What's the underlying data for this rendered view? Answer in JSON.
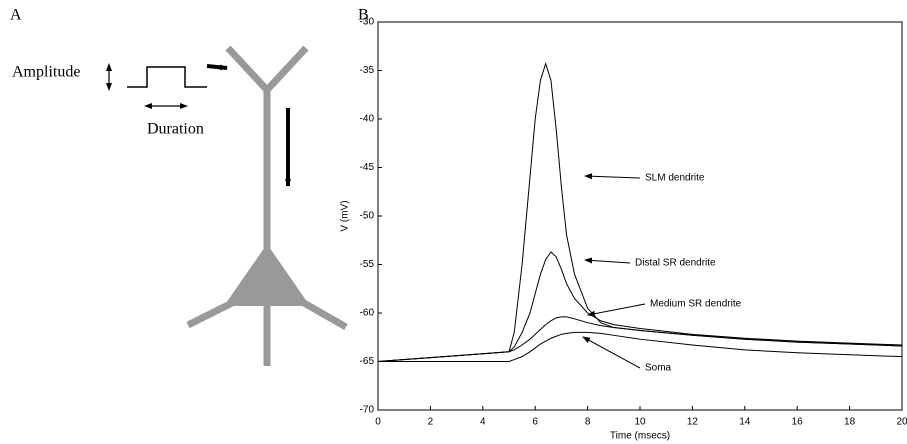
{
  "panel_labels": [
    "A",
    "B"
  ],
  "diagram": {
    "amplitude": "Amplitude",
    "duration": "Duration"
  },
  "chart_data": {
    "type": "line",
    "x_label": "Time (msecs)",
    "y_label": "V (mV)",
    "x": [
      0,
      2,
      4,
      5,
      5.2,
      5.5,
      5.8,
      6,
      6.2,
      6.4,
      6.6,
      6.8,
      7,
      7.2,
      7.5,
      8,
      8.5,
      9,
      10,
      12,
      14,
      16,
      18,
      20
    ],
    "series": [
      {
        "name": "SLM dendrite",
        "color": "#000000",
        "values": [
          -65,
          -64.6,
          -64.2,
          -64,
          -62,
          -55,
          -46,
          -40,
          -36,
          -34.3,
          -36,
          -41,
          -47,
          -52,
          -56,
          -59.5,
          -61,
          -61.5,
          -61.8,
          -62.3,
          -62.7,
          -63,
          -63.2,
          -63.4
        ]
      },
      {
        "name": "Distal SR dendrite",
        "color": "#000000",
        "values": [
          -65,
          -64.6,
          -64.2,
          -64,
          -63.5,
          -62,
          -60,
          -58,
          -56,
          -54.5,
          -53.7,
          -54.2,
          -55.5,
          -57,
          -58.5,
          -60,
          -60.8,
          -61.2,
          -61.6,
          -62.2,
          -62.6,
          -62.9,
          -63.1,
          -63.3
        ]
      },
      {
        "name": "Medium SR dendrite",
        "color": "#000000",
        "values": [
          -65,
          -64.6,
          -64.2,
          -64,
          -63.8,
          -63.3,
          -62.7,
          -62.2,
          -61.7,
          -61.2,
          -60.8,
          -60.5,
          -60.4,
          -60.4,
          -60.6,
          -61,
          -61.3,
          -61.5,
          -61.8,
          -62.3,
          -62.7,
          -63,
          -63.2,
          -63.4
        ]
      },
      {
        "name": "Soma",
        "color": "#000000",
        "values": [
          -65,
          -65,
          -65,
          -65,
          -64.8,
          -64.5,
          -64,
          -63.6,
          -63.2,
          -62.9,
          -62.6,
          -62.4,
          -62.2,
          -62.1,
          -62,
          -62,
          -62.1,
          -62.3,
          -62.7,
          -63.3,
          -63.8,
          -64.1,
          -64.3,
          -64.5
        ]
      }
    ],
    "xlim": [
      0,
      20
    ],
    "xticks": [
      0,
      2,
      4,
      6,
      8,
      10,
      12,
      14,
      16,
      18,
      20
    ],
    "ylim": [
      -70,
      -30
    ],
    "yticks": [
      -70,
      -65,
      -60,
      -55,
      -50,
      -45,
      -40,
      -35,
      -30
    ]
  }
}
